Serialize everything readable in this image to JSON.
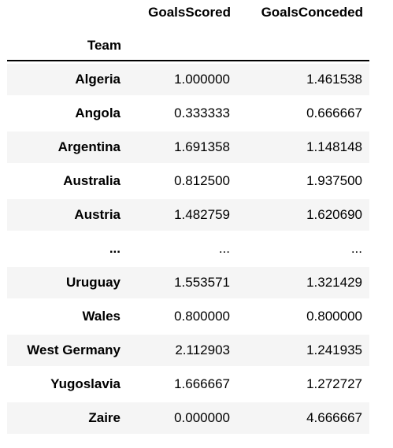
{
  "table": {
    "columns": [
      "GoalsScored",
      "GoalsConceded"
    ],
    "index_name": "Team",
    "rows": [
      {
        "team": "Algeria",
        "goals_scored": "1.000000",
        "goals_conceded": "1.461538"
      },
      {
        "team": "Angola",
        "goals_scored": "0.333333",
        "goals_conceded": "0.666667"
      },
      {
        "team": "Argentina",
        "goals_scored": "1.691358",
        "goals_conceded": "1.148148"
      },
      {
        "team": "Australia",
        "goals_scored": "0.812500",
        "goals_conceded": "1.937500"
      },
      {
        "team": "Austria",
        "goals_scored": "1.482759",
        "goals_conceded": "1.620690"
      },
      {
        "team": "...",
        "goals_scored": "...",
        "goals_conceded": "..."
      },
      {
        "team": "Uruguay",
        "goals_scored": "1.553571",
        "goals_conceded": "1.321429"
      },
      {
        "team": "Wales",
        "goals_scored": "0.800000",
        "goals_conceded": "0.800000"
      },
      {
        "team": "West Germany",
        "goals_scored": "2.112903",
        "goals_conceded": "1.241935"
      },
      {
        "team": "Yugoslavia",
        "goals_scored": "1.666667",
        "goals_conceded": "1.272727"
      },
      {
        "team": "Zaire",
        "goals_scored": "0.000000",
        "goals_conceded": "4.666667"
      }
    ]
  }
}
